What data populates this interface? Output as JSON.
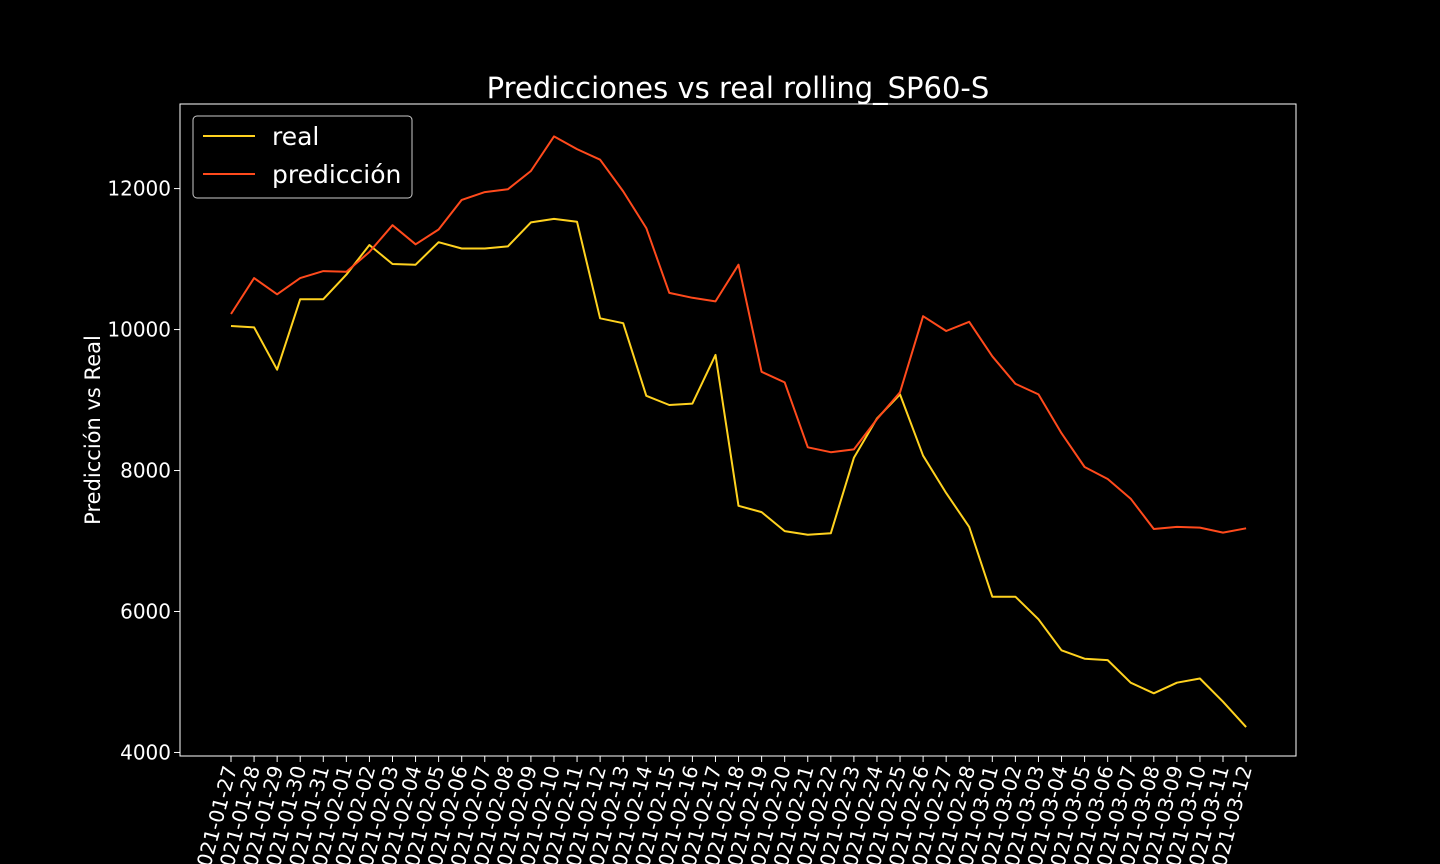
{
  "chart_data": {
    "type": "line",
    "title": "Predicciones vs real rolling_SP60-S",
    "xlabel": "",
    "ylabel": "Predicción vs Real",
    "ylim": [
      3950,
      13200
    ],
    "yticks": [
      4000,
      6000,
      8000,
      10000,
      12000
    ],
    "grid": false,
    "legend": "top-left",
    "categories": [
      "2021-01-27",
      "2021-01-28",
      "2021-01-29",
      "2021-01-30",
      "2021-01-31",
      "2021-02-01",
      "2021-02-02",
      "2021-02-03",
      "2021-02-04",
      "2021-02-05",
      "2021-02-06",
      "2021-02-07",
      "2021-02-08",
      "2021-02-09",
      "2021-02-10",
      "2021-02-11",
      "2021-02-12",
      "2021-02-13",
      "2021-02-14",
      "2021-02-15",
      "2021-02-16",
      "2021-02-17",
      "2021-02-18",
      "2021-02-19",
      "2021-02-20",
      "2021-02-21",
      "2021-02-22",
      "2021-02-23",
      "2021-02-24",
      "2021-02-25",
      "2021-02-26",
      "2021-02-27",
      "2021-02-28",
      "2021-03-01",
      "2021-03-02",
      "2021-03-03",
      "2021-03-04",
      "2021-03-05",
      "2021-03-06",
      "2021-03-07",
      "2021-03-08",
      "2021-03-09",
      "2021-03-10",
      "2021-03-11",
      "2021-03-12"
    ],
    "series": [
      {
        "name": "real",
        "color": "#ffd21f",
        "values": [
          10050,
          10030,
          9430,
          10430,
          10430,
          10780,
          11200,
          10930,
          10920,
          11240,
          11150,
          11150,
          11180,
          11520,
          11570,
          11530,
          10160,
          10090,
          9060,
          8930,
          8950,
          9640,
          7500,
          7410,
          7140,
          7090,
          7110,
          8180,
          8740,
          9080,
          8210,
          7680,
          7200,
          6210,
          6210,
          5890,
          5450,
          5330,
          5310,
          4990,
          4840,
          4990,
          5050,
          4720,
          4360
        ]
      },
      {
        "name": "predicción",
        "color": "#ff4a1c",
        "values": [
          10220,
          10730,
          10500,
          10730,
          10830,
          10820,
          11100,
          11480,
          11210,
          11420,
          11840,
          11950,
          11990,
          12250,
          12740,
          12560,
          12410,
          11960,
          11440,
          10520,
          10450,
          10400,
          10920,
          9400,
          9250,
          8330,
          8260,
          8300,
          8730,
          9110,
          10190,
          9980,
          10110,
          9620,
          9230,
          9080,
          8530,
          8050,
          7880,
          7600,
          7170,
          7200,
          7190,
          7120,
          7180
        ]
      }
    ]
  }
}
